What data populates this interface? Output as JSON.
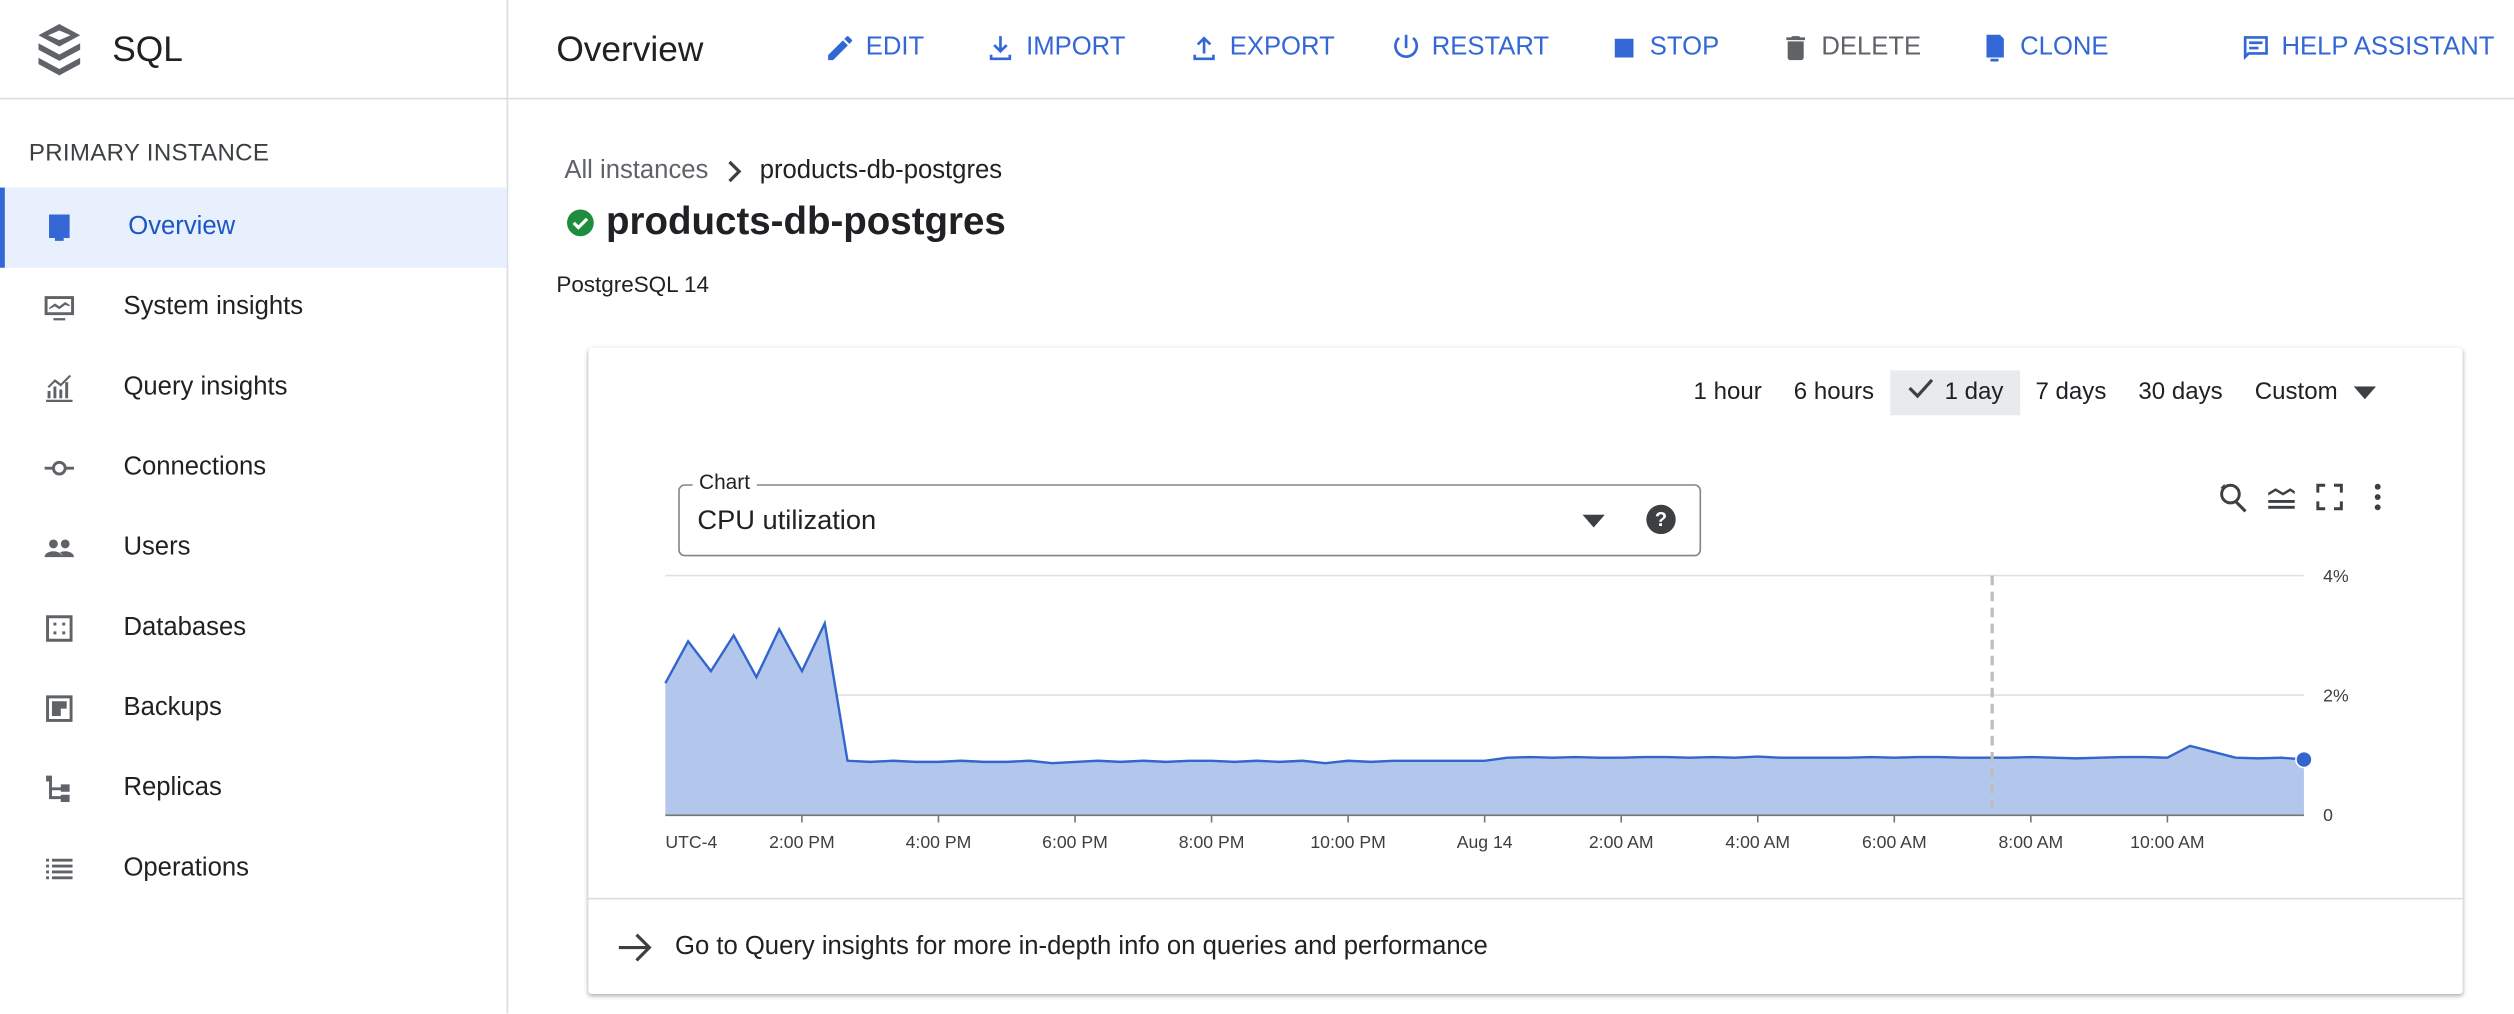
{
  "app": {
    "title": "SQL",
    "logo_icon": "stacked-layers-icon"
  },
  "header": {
    "title": "Overview",
    "actions": [
      {
        "label": "EDIT",
        "icon": "pencil-icon",
        "enabled": true
      },
      {
        "label": "IMPORT",
        "icon": "import-icon",
        "enabled": true
      },
      {
        "label": "EXPORT",
        "icon": "export-icon",
        "enabled": true
      },
      {
        "label": "RESTART",
        "icon": "power-icon",
        "enabled": true
      },
      {
        "label": "STOP",
        "icon": "stop-icon",
        "enabled": true
      },
      {
        "label": "DELETE",
        "icon": "trash-icon",
        "enabled": false
      },
      {
        "label": "CLONE",
        "icon": "clone-icon",
        "enabled": true
      },
      {
        "label": "HELP ASSISTANT",
        "icon": "help-assistant-icon",
        "enabled": true
      }
    ]
  },
  "sidebar": {
    "section": "PRIMARY INSTANCE",
    "items": [
      {
        "label": "Overview",
        "icon": "overview-icon",
        "active": true
      },
      {
        "label": "System insights",
        "icon": "monitor-icon"
      },
      {
        "label": "Query insights",
        "icon": "chart-icon"
      },
      {
        "label": "Connections",
        "icon": "connection-icon"
      },
      {
        "label": "Users",
        "icon": "users-icon"
      },
      {
        "label": "Databases",
        "icon": "database-icon"
      },
      {
        "label": "Backups",
        "icon": "backup-icon"
      },
      {
        "label": "Replicas",
        "icon": "replicas-icon"
      },
      {
        "label": "Operations",
        "icon": "list-icon"
      }
    ]
  },
  "breadcrumb": {
    "root": "All instances",
    "current": "products-db-postgres"
  },
  "instance": {
    "name": "products-db-postgres",
    "status": "running",
    "version": "PostgreSQL 14",
    "status_color": "#1e8e3e"
  },
  "time_range": {
    "options": [
      "1 hour",
      "6 hours",
      "1 day",
      "7 days",
      "30 days",
      "Custom"
    ],
    "selected": "1 day"
  },
  "chart_select": {
    "label": "Chart",
    "value": "CPU utilization"
  },
  "colors": {
    "accent": "#3367d6",
    "series_line": "#3366cc",
    "series_fill": "#b3c6ec"
  },
  "chart_data": {
    "type": "area",
    "ylim": [
      0,
      4
    ],
    "y_ticks": [
      "0",
      "2%",
      "4%"
    ],
    "x_ticks": [
      "UTC-4",
      "2:00 PM",
      "4:00 PM",
      "6:00 PM",
      "8:00 PM",
      "10:00 PM",
      "Aug 14",
      "2:00 AM",
      "4:00 AM",
      "6:00 AM",
      "8:00 AM",
      "10:00 AM"
    ],
    "grid": true,
    "marker_time": "Aug 14 07:26",
    "x": [
      "Aug 13 12:00",
      "Aug 13 12:20",
      "Aug 13 12:40",
      "Aug 13 13:00",
      "Aug 13 13:20",
      "Aug 13 13:40",
      "Aug 13 14:00",
      "Aug 13 14:20",
      "Aug 13 14:40",
      "Aug 13 15:00",
      "Aug 13 15:20",
      "Aug 13 15:40",
      "Aug 13 16:00",
      "Aug 13 16:20",
      "Aug 13 16:40",
      "Aug 13 17:00",
      "Aug 13 17:20",
      "Aug 13 17:40",
      "Aug 13 18:00",
      "Aug 13 18:20",
      "Aug 13 18:40",
      "Aug 13 19:00",
      "Aug 13 19:20",
      "Aug 13 19:40",
      "Aug 13 20:00",
      "Aug 13 20:20",
      "Aug 13 20:40",
      "Aug 13 21:00",
      "Aug 13 21:20",
      "Aug 13 21:40",
      "Aug 13 22:00",
      "Aug 13 22:20",
      "Aug 13 22:40",
      "Aug 13 23:00",
      "Aug 13 23:20",
      "Aug 13 23:40",
      "Aug 14 00:00",
      "Aug 14 00:20",
      "Aug 14 00:40",
      "Aug 14 01:00",
      "Aug 14 01:20",
      "Aug 14 01:40",
      "Aug 14 02:00",
      "Aug 14 02:20",
      "Aug 14 02:40",
      "Aug 14 03:00",
      "Aug 14 03:20",
      "Aug 14 03:40",
      "Aug 14 04:00",
      "Aug 14 04:20",
      "Aug 14 04:40",
      "Aug 14 05:00",
      "Aug 14 05:20",
      "Aug 14 05:40",
      "Aug 14 06:00",
      "Aug 14 06:20",
      "Aug 14 06:40",
      "Aug 14 07:00",
      "Aug 14 07:20",
      "Aug 14 07:40",
      "Aug 14 08:00",
      "Aug 14 08:20",
      "Aug 14 08:40",
      "Aug 14 09:00",
      "Aug 14 09:20",
      "Aug 14 09:40",
      "Aug 14 10:00",
      "Aug 14 10:20",
      "Aug 14 10:40",
      "Aug 14 11:00",
      "Aug 14 11:20",
      "Aug 14 11:40",
      "Aug 14 12:00"
    ],
    "values": [
      2.2,
      2.9,
      2.4,
      3.0,
      2.3,
      3.1,
      2.4,
      3.2,
      0.9,
      0.88,
      0.9,
      0.88,
      0.88,
      0.9,
      0.88,
      0.88,
      0.9,
      0.86,
      0.88,
      0.9,
      0.88,
      0.9,
      0.88,
      0.9,
      0.9,
      0.88,
      0.9,
      0.88,
      0.9,
      0.86,
      0.9,
      0.88,
      0.9,
      0.9,
      0.9,
      0.9,
      0.9,
      0.95,
      0.96,
      0.95,
      0.96,
      0.95,
      0.95,
      0.96,
      0.96,
      0.95,
      0.96,
      0.95,
      0.97,
      0.95,
      0.95,
      0.95,
      0.95,
      0.96,
      0.95,
      0.96,
      0.96,
      0.95,
      0.95,
      0.95,
      0.96,
      0.95,
      0.94,
      0.95,
      0.96,
      0.96,
      0.95,
      1.15,
      1.05,
      0.95,
      0.94,
      0.95,
      0.92
    ]
  },
  "footer_link": "Go to Query insights for more in-depth info on queries and performance"
}
